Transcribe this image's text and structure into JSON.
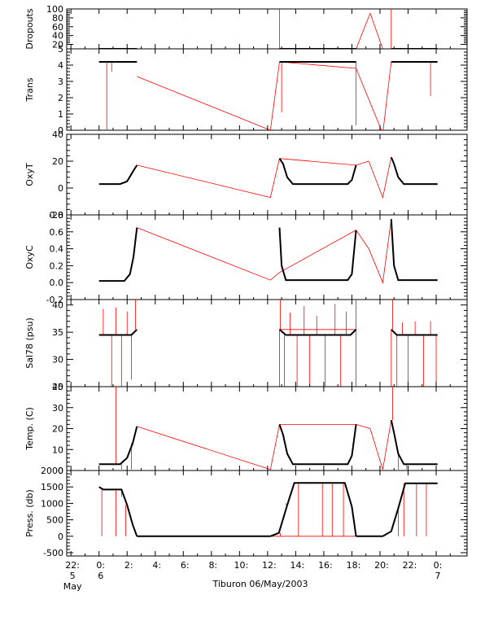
{
  "chart_data": {
    "type": "line",
    "title": "",
    "xlabel": "Tiburon 06/May/2003",
    "x_unit": "hours relative to 00:00 6 May 2003",
    "xlim": [
      -2.3,
      26.2
    ],
    "x_ticks": [
      {
        "x": -2,
        "line1": "22:",
        "line2": "5",
        "line3": "May"
      },
      {
        "x": 0,
        "line1": "0:",
        "line2": "6",
        "line3": ""
      },
      {
        "x": 2,
        "line1": "2:",
        "line2": "",
        "line3": ""
      },
      {
        "x": 4,
        "line1": "4:",
        "line2": "",
        "line3": ""
      },
      {
        "x": 6,
        "line1": "6:",
        "line2": "",
        "line3": ""
      },
      {
        "x": 8,
        "line1": "8:",
        "line2": "",
        "line3": ""
      },
      {
        "x": 10,
        "line1": "10:",
        "line2": "",
        "line3": ""
      },
      {
        "x": 12,
        "line1": "12:",
        "line2": "",
        "line3": ""
      },
      {
        "x": 14,
        "line1": "14:",
        "line2": "",
        "line3": ""
      },
      {
        "x": 16,
        "line1": "16:",
        "line2": "",
        "line3": ""
      },
      {
        "x": 18,
        "line1": "18:",
        "line2": "",
        "line3": ""
      },
      {
        "x": 20,
        "line1": "20:",
        "line2": "",
        "line3": ""
      },
      {
        "x": 22,
        "line1": "22:",
        "line2": "",
        "line3": ""
      },
      {
        "x": 24,
        "line1": "0:",
        "line2": "7",
        "line3": ""
      }
    ],
    "series_colors": {
      "good": "#000000",
      "flagged": "#ff0000"
    },
    "panels": [
      {
        "id": "dropouts",
        "ylabel": "Dropouts",
        "ylim": [
          10,
          100
        ],
        "yticks": [
          {
            "v": 100,
            "l": "100"
          },
          {
            "v": 80,
            "l": "80"
          },
          {
            "v": 60,
            "l": "60"
          },
          {
            "v": 40,
            "l": "40"
          },
          {
            "v": 20,
            "l": "20"
          }
        ],
        "good_segments": [
          [
            [
              0,
              10
            ],
            [
              2.7,
              10
            ]
          ],
          [
            [
              12.85,
              10
            ],
            [
              18.3,
              10
            ]
          ],
          [
            [
              20.8,
              10
            ],
            [
              24.1,
              10
            ]
          ]
        ],
        "flagged_line": [
          [
            0,
            10
          ],
          [
            2.7,
            10
          ],
          [
            12.85,
            10
          ],
          [
            18.3,
            10
          ],
          [
            19.3,
            90
          ],
          [
            20.2,
            10
          ],
          [
            20.8,
            10
          ],
          [
            24.1,
            10
          ]
        ],
        "flagged_spikes": [
          [
            12.85,
            100
          ],
          [
            20.8,
            100
          ]
        ]
      },
      {
        "id": "trans",
        "ylabel": "Trans",
        "ylim": [
          0,
          5
        ],
        "yticks": [
          {
            "v": 5,
            "l": "5"
          },
          {
            "v": 4,
            "l": "4"
          },
          {
            "v": 3,
            "l": "3"
          },
          {
            "v": 2,
            "l": "2"
          },
          {
            "v": 1,
            "l": "1"
          },
          {
            "v": 0,
            "l": "0"
          }
        ],
        "good_segments": [
          [
            [
              0,
              4.2
            ],
            [
              2.7,
              4.2
            ]
          ],
          [
            [
              12.85,
              4.2
            ],
            [
              18.3,
              4.2
            ]
          ],
          [
            [
              20.8,
              4.2
            ],
            [
              24.1,
              4.2
            ]
          ]
        ],
        "flagged_line": [
          [
            2.7,
            3.3
          ],
          [
            12.2,
            0.0
          ],
          [
            12.85,
            4.2
          ],
          [
            18.3,
            3.8
          ],
          [
            20.2,
            -0.2
          ],
          [
            20.8,
            4.2
          ]
        ],
        "flagged_spikes": [
          [
            0.55,
            0.0
          ],
          [
            0.9,
            3.6
          ],
          [
            13.0,
            1.1
          ],
          [
            18.3,
            0.3
          ],
          [
            23.6,
            2.1
          ]
        ]
      },
      {
        "id": "oxyt",
        "ylabel": "OxyT",
        "ylim": [
          -20,
          40
        ],
        "yticks": [
          {
            "v": 40,
            "l": "40"
          },
          {
            "v": 20,
            "l": "20"
          },
          {
            "v": 0,
            "l": "0"
          },
          {
            "v": -20,
            "l": "-20"
          }
        ],
        "good_segments": [
          [
            [
              0,
              3
            ],
            [
              1.5,
              3
            ],
            [
              2.0,
              5
            ],
            [
              2.4,
              12
            ],
            [
              2.7,
              17
            ]
          ],
          [
            [
              12.85,
              22
            ],
            [
              13.1,
              18
            ],
            [
              13.4,
              8
            ],
            [
              13.8,
              3
            ],
            [
              17.7,
              3
            ],
            [
              18.0,
              6
            ],
            [
              18.3,
              17
            ]
          ],
          [
            [
              20.8,
              23
            ],
            [
              21.0,
              18
            ],
            [
              21.3,
              8
            ],
            [
              21.7,
              3
            ],
            [
              24.1,
              3
            ]
          ]
        ],
        "flagged_line": [
          [
            2.7,
            17
          ],
          [
            12.2,
            -7
          ],
          [
            12.85,
            22
          ],
          [
            18.3,
            17
          ],
          [
            19.2,
            20
          ],
          [
            20.2,
            -7
          ],
          [
            20.8,
            23
          ]
        ],
        "flagged_spikes": []
      },
      {
        "id": "oxyc",
        "ylabel": "OxyC",
        "ylim": [
          -0.2,
          0.8
        ],
        "yticks": [
          {
            "v": 0.8,
            "l": "0.8"
          },
          {
            "v": 0.6,
            "l": "0.6"
          },
          {
            "v": 0.4,
            "l": "0.4"
          },
          {
            "v": 0.2,
            "l": "0.2"
          },
          {
            "v": 0.0,
            "l": "0.0"
          },
          {
            "v": -0.2,
            "l": "-0.2"
          }
        ],
        "good_segments": [
          [
            [
              0,
              0.02
            ],
            [
              1.8,
              0.02
            ],
            [
              2.2,
              0.1
            ],
            [
              2.45,
              0.3
            ],
            [
              2.7,
              0.65
            ]
          ],
          [
            [
              12.85,
              0.65
            ],
            [
              13.0,
              0.2
            ],
            [
              13.3,
              0.03
            ],
            [
              17.7,
              0.03
            ],
            [
              18.0,
              0.1
            ],
            [
              18.3,
              0.62
            ]
          ],
          [
            [
              20.8,
              0.75
            ],
            [
              21.0,
              0.2
            ],
            [
              21.3,
              0.03
            ],
            [
              24.1,
              0.03
            ]
          ]
        ],
        "flagged_line": [
          [
            2.7,
            0.65
          ],
          [
            12.2,
            0.03
          ],
          [
            12.85,
            0.12
          ],
          [
            18.3,
            0.62
          ],
          [
            19.2,
            0.4
          ],
          [
            20.2,
            0.0
          ],
          [
            20.8,
            0.75
          ]
        ],
        "flagged_spikes": []
      },
      {
        "id": "sal",
        "ylabel": "Sal78 (psu)",
        "ylim": [
          25,
          41
        ],
        "yticks": [
          {
            "v": 40,
            "l": "40"
          },
          {
            "v": 35,
            "l": "35"
          },
          {
            "v": 30,
            "l": "30"
          },
          {
            "v": 25,
            "l": "25"
          }
        ],
        "good_segments": [
          [
            [
              0,
              34.5
            ],
            [
              2.3,
              34.5
            ],
            [
              2.7,
              35.5
            ]
          ],
          [
            [
              12.85,
              35.5
            ],
            [
              13.3,
              34.5
            ],
            [
              17.9,
              34.5
            ],
            [
              18.3,
              35.5
            ]
          ],
          [
            [
              20.8,
              35.5
            ],
            [
              21.2,
              34.5
            ],
            [
              24.1,
              34.5
            ]
          ]
        ],
        "flagged_line": [
          [
            2.7,
            24.2
          ],
          [
            12.85,
            24.2
          ],
          [
            12.85,
            35.5
          ],
          [
            18.3,
            35.5
          ],
          [
            18.3,
            24.2
          ],
          [
            20.8,
            24.2
          ],
          [
            20.8,
            35.5
          ]
        ],
        "flagged_spikes": [
          [
            0.3,
            39.3
          ],
          [
            0.6,
            34.5
          ],
          [
            0.9,
            24.5
          ],
          [
            1.2,
            39.5
          ],
          [
            1.6,
            24.2
          ],
          [
            2.0,
            38.8
          ],
          [
            2.3,
            26.3
          ],
          [
            2.6,
            41.0
          ],
          [
            12.9,
            41.0
          ],
          [
            13.2,
            24.2
          ],
          [
            13.6,
            38.6
          ],
          [
            14.1,
            24.2
          ],
          [
            14.6,
            39.8
          ],
          [
            15.0,
            24.2
          ],
          [
            15.5,
            38.0
          ],
          [
            16.1,
            24.2
          ],
          [
            16.8,
            40.2
          ],
          [
            17.2,
            24.2
          ],
          [
            17.6,
            38.8
          ],
          [
            18.3,
            41.0
          ],
          [
            20.9,
            41.0
          ],
          [
            21.2,
            24.2
          ],
          [
            21.6,
            36.8
          ],
          [
            22.0,
            24.2
          ],
          [
            22.5,
            37.0
          ],
          [
            23.1,
            24.2
          ],
          [
            23.6,
            37.0
          ],
          [
            24.0,
            24.2
          ]
        ]
      },
      {
        "id": "temp",
        "ylabel": "Temp. (C)",
        "ylim": [
          0,
          40
        ],
        "yticks": [
          {
            "v": 40,
            "l": "40"
          },
          {
            "v": 30,
            "l": "30"
          },
          {
            "v": 20,
            "l": "20"
          },
          {
            "v": 10,
            "l": "10"
          },
          {
            "v": 0,
            "l": "0"
          }
        ],
        "good_segments": [
          [
            [
              0,
              3
            ],
            [
              1.5,
              3
            ],
            [
              2.0,
              6
            ],
            [
              2.4,
              13
            ],
            [
              2.7,
              21
            ]
          ],
          [
            [
              12.85,
              22
            ],
            [
              13.1,
              17
            ],
            [
              13.4,
              8
            ],
            [
              13.8,
              3
            ],
            [
              17.7,
              3
            ],
            [
              18.0,
              7
            ],
            [
              18.3,
              22
            ]
          ],
          [
            [
              20.8,
              24
            ],
            [
              21.0,
              18
            ],
            [
              21.3,
              8
            ],
            [
              21.7,
              3
            ],
            [
              24.1,
              3
            ]
          ]
        ],
        "flagged_line": [
          [
            2.7,
            21
          ],
          [
            12.2,
            0.5
          ],
          [
            12.85,
            22
          ],
          [
            18.3,
            22
          ],
          [
            19.3,
            20
          ],
          [
            20.2,
            0.5
          ],
          [
            20.8,
            24
          ]
        ],
        "flagged_spikes": [
          [
            1.2,
            40
          ],
          [
            1.6,
            0.5
          ],
          [
            2.3,
            0.5
          ],
          [
            20.9,
            40
          ],
          [
            21.3,
            0.5
          ],
          [
            21.9,
            0.5
          ]
        ]
      },
      {
        "id": "press",
        "ylabel": "Press. (db)",
        "ylim": [
          -600,
          2000
        ],
        "yticks": [
          {
            "v": 2000,
            "l": "2000"
          },
          {
            "v": 1500,
            "l": "1500"
          },
          {
            "v": 1000,
            "l": "1000"
          },
          {
            "v": 500,
            "l": "500"
          },
          {
            "v": 0,
            "l": "0"
          },
          {
            "v": -500,
            "l": "-500"
          }
        ],
        "good_segments": [
          [
            [
              0,
              1500
            ],
            [
              0.3,
              1420
            ],
            [
              1.6,
              1420
            ],
            [
              2.0,
              950
            ],
            [
              2.4,
              350
            ],
            [
              2.7,
              0
            ]
          ],
          [
            [
              2.7,
              0
            ],
            [
              12.2,
              0
            ]
          ],
          [
            [
              12.2,
              0
            ],
            [
              12.8,
              100
            ],
            [
              13.4,
              950
            ],
            [
              13.9,
              1620
            ],
            [
              17.5,
              1620
            ],
            [
              18.0,
              900
            ],
            [
              18.3,
              0
            ]
          ],
          [
            [
              18.3,
              0
            ],
            [
              20.2,
              0
            ]
          ],
          [
            [
              20.2,
              0
            ],
            [
              20.8,
              150
            ],
            [
              21.3,
              850
            ],
            [
              21.8,
              1610
            ],
            [
              24.1,
              1610
            ]
          ]
        ],
        "flagged_line": [
          [
            2.7,
            0
          ],
          [
            12.2,
            0
          ],
          [
            18.3,
            0
          ],
          [
            20.2,
            0
          ]
        ],
        "flagged_spikes": [
          [
            0.2,
            0
          ],
          [
            0.5,
            1400
          ],
          [
            0.8,
            1400
          ],
          [
            1.2,
            0
          ],
          [
            1.6,
            1200
          ],
          [
            1.9,
            0
          ],
          [
            12.9,
            0
          ],
          [
            13.3,
            1000
          ],
          [
            14.2,
            0
          ],
          [
            14.8,
            1600
          ],
          [
            15.3,
            1600
          ],
          [
            15.9,
            0
          ],
          [
            16.6,
            0
          ],
          [
            17.0,
            1600
          ],
          [
            17.4,
            0
          ],
          [
            21.3,
            0
          ],
          [
            21.7,
            0
          ],
          [
            22.6,
            0
          ],
          [
            23.3,
            0
          ]
        ]
      }
    ]
  }
}
